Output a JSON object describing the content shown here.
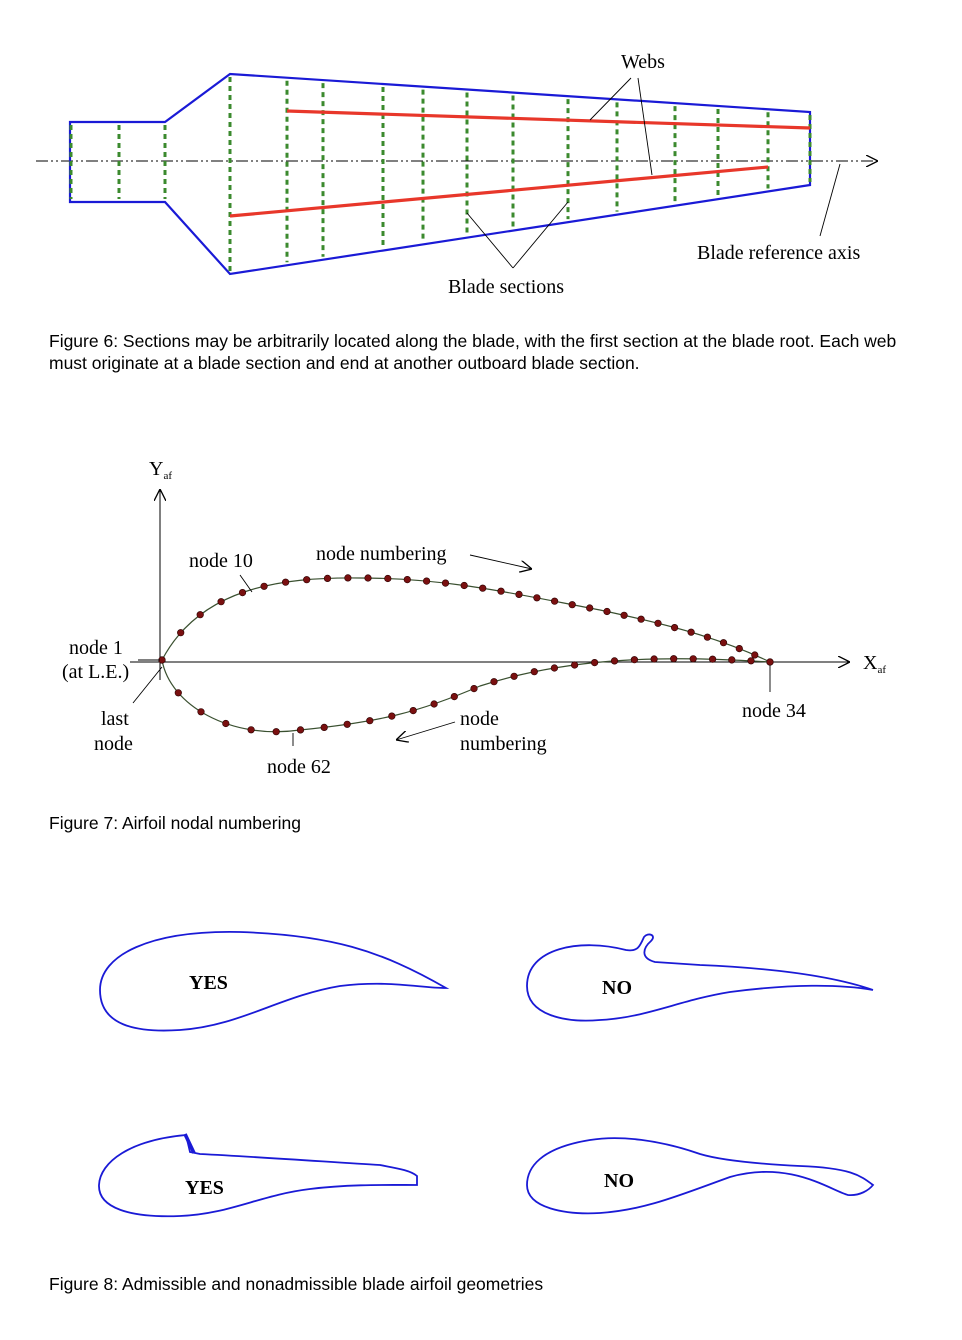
{
  "figure6": {
    "labels": {
      "webs": "Webs",
      "reference_axis": "Blade reference axis",
      "blade_sections": "Blade sections"
    },
    "caption": "Figure 6: Sections may be arbitrarily located along the blade, with the first section at the blade root.  Each web must originate at a blade section and end at another outboard blade section."
  },
  "figure7": {
    "y_axis_main": "Y",
    "y_axis_sub": "af",
    "x_axis_main": "X",
    "x_axis_sub": "af",
    "labels": {
      "node10": "node 10",
      "numbering_upper": "node numbering",
      "node1_line1": "node 1",
      "node1_line2": "(at L.E.)",
      "last_line1": "last",
      "last_line2": "node",
      "node34": "node 34",
      "numbering_lower_1": "node",
      "numbering_lower_2": "numbering",
      "node62": "node 62"
    },
    "caption": "Figure 7: Airfoil nodal numbering"
  },
  "figure8": {
    "verdicts": [
      "YES",
      "NO",
      "YES",
      "NO"
    ],
    "caption": "Figure 8: Admissible and nonadmissible blade airfoil geometries"
  },
  "colors": {
    "outline": "#1a1ad6",
    "web": "#e8372a",
    "section": "#3b8a2e",
    "node": "#7a1010",
    "curve": "#3a5030"
  }
}
